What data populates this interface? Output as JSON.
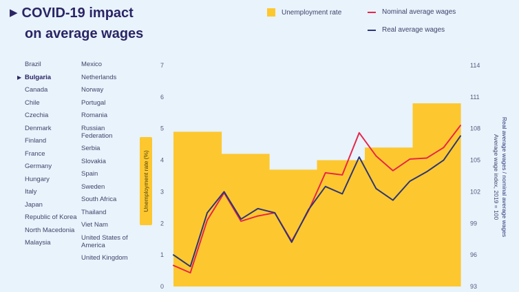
{
  "title": {
    "marker": "▶",
    "line1": "COVID-19 impact",
    "line2": "on average wages"
  },
  "legend": {
    "unemployment": "Unemployment rate",
    "nominal": "Nominal average wages",
    "real": "Real average wages"
  },
  "countries": {
    "column1": [
      "Brazil",
      "Bulgaria",
      "Canada",
      "Chile",
      "Czechia",
      "Denmark",
      "Finland",
      "France",
      "Germany",
      "Hungary",
      "Italy",
      "Japan",
      "Republic of Korea",
      "North Macedonia",
      "Malaysia"
    ],
    "column2": [
      "Mexico",
      "Netherlands",
      "Norway",
      "Portugal",
      "Romania",
      "Russian Federation",
      "Serbia",
      "Slovakia",
      "Spain",
      "Sweden",
      "South Africa",
      "Thailand",
      "Viet Nam",
      "United States of America",
      "United Kingdom"
    ],
    "selected": "Bulgaria",
    "selected_marker": "▶"
  },
  "colors": {
    "unemployment": "#fdc82f",
    "nominal": "#e8254a",
    "real": "#2e3576",
    "title": "#2b2464"
  },
  "chart_data": {
    "type": "line",
    "left_axis": {
      "title": "Unemployment rate (%)",
      "range": [
        0,
        7
      ],
      "ticks": [
        0,
        1,
        2,
        3,
        4,
        5,
        6,
        7
      ]
    },
    "right_axis": {
      "title_line1": "Real average wages / nominal average wages",
      "title_line2": "Average wage index, 2019 = 100",
      "range": [
        93,
        114
      ],
      "ticks": [
        93,
        96,
        99,
        102,
        105,
        108,
        111,
        114
      ]
    },
    "series": [
      {
        "name": "Unemployment rate",
        "kind": "step-area",
        "axis": "left",
        "values": [
          4.9,
          4.9,
          4.9,
          4.2,
          4.2,
          4.2,
          3.7,
          3.7,
          3.7,
          4.0,
          4.0,
          4.0,
          4.4,
          4.4,
          4.4,
          5.8,
          5.8,
          5.8
        ]
      },
      {
        "name": "Nominal average wages",
        "axis": "right",
        "values": [
          95.0,
          94.3,
          99.3,
          101.9,
          99.2,
          99.7,
          100.0,
          97.3,
          100.2,
          103.8,
          103.6,
          107.6,
          105.4,
          104.0,
          105.1,
          105.2,
          106.2,
          108.3
        ]
      },
      {
        "name": "Real average wages",
        "axis": "right",
        "values": [
          96.0,
          94.9,
          100.0,
          102.0,
          99.4,
          100.4,
          100.0,
          97.2,
          100.3,
          102.5,
          101.8,
          105.3,
          102.3,
          101.2,
          103.0,
          103.9,
          105.0,
          107.3
        ]
      }
    ]
  }
}
